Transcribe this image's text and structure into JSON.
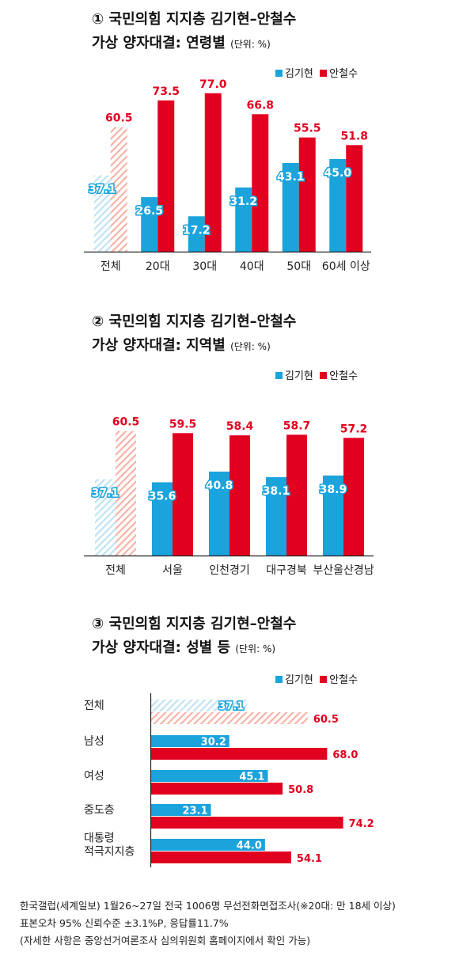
{
  "colors": {
    "kim": "#1ba3dc",
    "ahn": "#e1001f",
    "kim_hatch": "#bfe3f4",
    "ahn_hatch": "#f7b3a6"
  },
  "legend": {
    "kim": "김기현",
    "ahn": "안철수"
  },
  "sections": [
    {
      "title_line1": "① 국민의힘 지지층 김기현–안철수",
      "title_line2": "가상 양자대결: 연령별",
      "unit": "(단위: %)"
    },
    {
      "title_line1": "② 국민의힘 지지층 김기현–안철수",
      "title_line2": "가상 양자대결: 지역별",
      "unit": "(단위: %)"
    },
    {
      "title_line1": "③ 국민의힘 지지층 김기현–안철수",
      "title_line2": "가상 양자대결: 성별 등",
      "unit": "(단위: %)"
    }
  ],
  "chart_data": [
    {
      "type": "bar",
      "orientation": "vertical",
      "categories": [
        "전체",
        "20대",
        "30대",
        "40대",
        "50대",
        "60세 이상"
      ],
      "series": [
        {
          "name": "김기현",
          "values": [
            37.1,
            26.5,
            17.2,
            31.2,
            43.1,
            45.0
          ]
        },
        {
          "name": "안철수",
          "values": [
            60.5,
            73.5,
            77.0,
            66.8,
            55.5,
            51.8
          ]
        }
      ],
      "value_labels": {
        "김기현": [
          "37.1",
          "26.5",
          "17.2",
          "31.2",
          "43.1",
          "45.0"
        ],
        "안철수": [
          "60.5",
          "73.5",
          "77.0",
          "66.8",
          "55.5",
          "51.8"
        ]
      },
      "hatched_categories": [
        "전체"
      ],
      "legend_position": "top-right"
    },
    {
      "type": "bar",
      "orientation": "vertical",
      "categories": [
        "전체",
        "서울",
        "인천경기",
        "대구경북",
        "부산울산경남"
      ],
      "series": [
        {
          "name": "김기현",
          "values": [
            37.1,
            35.6,
            40.8,
            38.1,
            38.9
          ]
        },
        {
          "name": "안철수",
          "values": [
            60.5,
            59.5,
            58.4,
            58.7,
            57.2
          ]
        }
      ],
      "value_labels": {
        "김기현": [
          "37.1",
          "35.6",
          "40.8",
          "38.1",
          "38.9"
        ],
        "안철수": [
          "60.5",
          "59.5",
          "58.4",
          "58.7",
          "57.2"
        ]
      },
      "hatched_categories": [
        "전체"
      ],
      "legend_position": "top-right"
    },
    {
      "type": "bar",
      "orientation": "horizontal",
      "categories": [
        "전체",
        "남성",
        "여성",
        "중도층",
        "대통령\n적극지지층"
      ],
      "category_lines": [
        [
          "전체"
        ],
        [
          "남성"
        ],
        [
          "여성"
        ],
        [
          "중도층"
        ],
        [
          "대통령",
          "적극지지층"
        ]
      ],
      "series": [
        {
          "name": "김기현",
          "values": [
            37.1,
            30.2,
            45.1,
            23.1,
            44.0
          ]
        },
        {
          "name": "안철수",
          "values": [
            60.5,
            68.0,
            50.8,
            74.2,
            54.1
          ]
        }
      ],
      "value_labels": {
        "김기현": [
          "37.1",
          "30.2",
          "45.1",
          "23.1",
          "44.0"
        ],
        "안철수": [
          "60.5",
          "68.0",
          "50.8",
          "74.2",
          "54.1"
        ]
      },
      "hatched_categories": [
        "전체"
      ],
      "legend_position": "top-right"
    }
  ],
  "footer": [
    "한국갤럽(세계일보) 1월26~27일 전국 1006명 무선전화면접조사(※20대: 만 18세 이상)",
    "표본오차 95% 신뢰수준 ±3.1%P, 응답률11.7%",
    "(자세한 사항은 중앙선거여론조사 심의위원회 홈페이지에서 확인 가능)"
  ]
}
